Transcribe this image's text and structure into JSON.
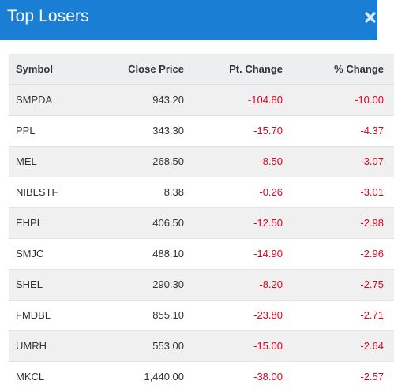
{
  "header": {
    "title": "Top Losers",
    "close_icon": "close-icon"
  },
  "colors": {
    "header_bg": "#1a7fd4",
    "header_text": "#ffffff",
    "negative": "#e4001b",
    "row_odd": "#f0f0f0",
    "row_even": "#ffffff",
    "table_header_bg": "#edeef0"
  },
  "table": {
    "columns": [
      "Symbol",
      "Close Price",
      "Pt. Change",
      "% Change"
    ],
    "rows": [
      {
        "symbol": "SMPDA",
        "close": "943.20",
        "pt": "-104.80",
        "pct": "-10.00"
      },
      {
        "symbol": "PPL",
        "close": "343.30",
        "pt": "-15.70",
        "pct": "-4.37"
      },
      {
        "symbol": "MEL",
        "close": "268.50",
        "pt": "-8.50",
        "pct": "-3.07"
      },
      {
        "symbol": "NIBLSTF",
        "close": "8.38",
        "pt": "-0.26",
        "pct": "-3.01"
      },
      {
        "symbol": "EHPL",
        "close": "406.50",
        "pt": "-12.50",
        "pct": "-2.98"
      },
      {
        "symbol": "SMJC",
        "close": "488.10",
        "pt": "-14.90",
        "pct": "-2.96"
      },
      {
        "symbol": "SHEL",
        "close": "290.30",
        "pt": "-8.20",
        "pct": "-2.75"
      },
      {
        "symbol": "FMDBL",
        "close": "855.10",
        "pt": "-23.80",
        "pct": "-2.71"
      },
      {
        "symbol": "UMRH",
        "close": "553.00",
        "pt": "-15.00",
        "pct": "-2.64"
      },
      {
        "symbol": "MKCL",
        "close": "1,440.00",
        "pt": "-38.00",
        "pct": "-2.57"
      }
    ]
  }
}
